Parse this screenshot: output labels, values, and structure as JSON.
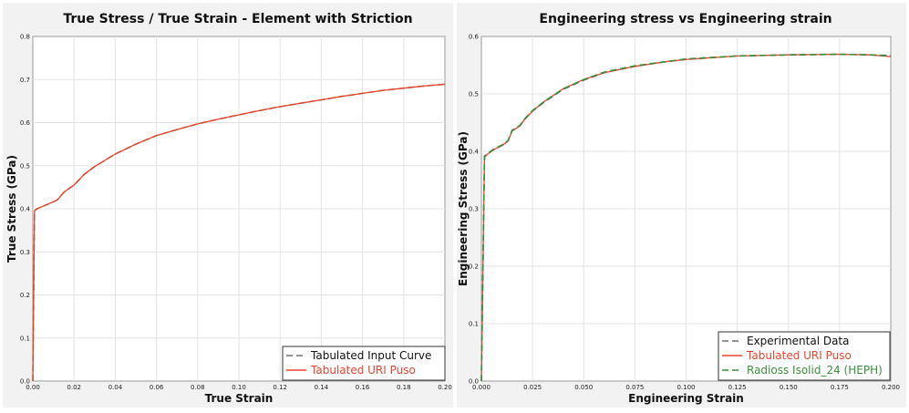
{
  "chart_data": [
    {
      "type": "line",
      "title": "True Stress / True Strain - Element with Striction",
      "xlabel": "True Strain",
      "ylabel": "True Stress (GPa)",
      "xlim": [
        0,
        0.2
      ],
      "ylim": [
        0,
        0.8
      ],
      "xticks": [
        "0.00",
        "0.02",
        "0.04",
        "0.06",
        "0.08",
        "0.10",
        "0.12",
        "0.14",
        "0.16",
        "0.18",
        "0.20"
      ],
      "yticks": [
        "0.0",
        "0.1",
        "0.2",
        "0.3",
        "0.4",
        "0.5",
        "0.6",
        "0.7",
        "0.8"
      ],
      "legend_position": "bottom-right",
      "series": [
        {
          "name": "Tabulated Input Curve",
          "color": "#707070",
          "style": "dashed",
          "x": [
            0,
            0.0008,
            0.002,
            0.005,
            0.008,
            0.01,
            0.012,
            0.015,
            0.017,
            0.02,
            0.025,
            0.03,
            0.04,
            0.05,
            0.06,
            0.07,
            0.08,
            0.09,
            0.1,
            0.11,
            0.12,
            0.13,
            0.14,
            0.15,
            0.16,
            0.17,
            0.18,
            0.19,
            0.2
          ],
          "y": [
            0,
            0.395,
            0.4,
            0.406,
            0.412,
            0.416,
            0.421,
            0.438,
            0.445,
            0.455,
            0.48,
            0.498,
            0.527,
            0.55,
            0.57,
            0.584,
            0.597,
            0.608,
            0.618,
            0.628,
            0.637,
            0.645,
            0.653,
            0.661,
            0.668,
            0.675,
            0.68,
            0.685,
            0.689
          ]
        },
        {
          "name": "Tabulated URI Puso",
          "color": "#e8452c",
          "style": "solid",
          "x": [
            0,
            0.0008,
            0.002,
            0.005,
            0.008,
            0.01,
            0.012,
            0.015,
            0.017,
            0.02,
            0.025,
            0.03,
            0.04,
            0.05,
            0.06,
            0.07,
            0.08,
            0.09,
            0.1,
            0.11,
            0.12,
            0.13,
            0.14,
            0.15,
            0.16,
            0.17,
            0.18,
            0.19,
            0.2
          ],
          "y": [
            0,
            0.395,
            0.4,
            0.406,
            0.412,
            0.416,
            0.421,
            0.438,
            0.445,
            0.455,
            0.48,
            0.498,
            0.527,
            0.55,
            0.57,
            0.584,
            0.597,
            0.608,
            0.618,
            0.628,
            0.637,
            0.645,
            0.653,
            0.661,
            0.668,
            0.675,
            0.68,
            0.685,
            0.689
          ]
        }
      ]
    },
    {
      "type": "line",
      "title": "Engineering stress vs Engineering strain",
      "xlabel": "Engineering Strain",
      "ylabel": "Engineering Stress (GPa)",
      "xlim": [
        0,
        0.2
      ],
      "ylim": [
        0,
        0.6
      ],
      "xticks": [
        "0.000",
        "0.025",
        "0.050",
        "0.075",
        "0.100",
        "0.125",
        "0.150",
        "0.175",
        "0.200"
      ],
      "yticks": [
        "0.0",
        "0.1",
        "0.2",
        "0.3",
        "0.4",
        "0.5",
        "0.6"
      ],
      "legend_position": "bottom-right",
      "series": [
        {
          "name": "Experimental Data",
          "color": "#707070",
          "style": "dashed",
          "x": [
            0,
            0.0015,
            0.003,
            0.006,
            0.01,
            0.013,
            0.015,
            0.017,
            0.019,
            0.021,
            0.025,
            0.03,
            0.04,
            0.05,
            0.06,
            0.075,
            0.09,
            0.1,
            0.125,
            0.15,
            0.175,
            0.19,
            0.2
          ],
          "y": [
            0,
            0.39,
            0.395,
            0.403,
            0.41,
            0.418,
            0.437,
            0.44,
            0.445,
            0.455,
            0.47,
            0.484,
            0.508,
            0.524,
            0.537,
            0.548,
            0.556,
            0.56,
            0.566,
            0.568,
            0.569,
            0.568,
            0.567
          ]
        },
        {
          "name": "Tabulated URI Puso",
          "color": "#e8452c",
          "style": "solid",
          "x": [
            0,
            0.0015,
            0.003,
            0.006,
            0.01,
            0.013,
            0.015,
            0.017,
            0.019,
            0.021,
            0.025,
            0.03,
            0.04,
            0.05,
            0.06,
            0.075,
            0.09,
            0.1,
            0.125,
            0.15,
            0.175,
            0.19,
            0.2
          ],
          "y": [
            0,
            0.39,
            0.395,
            0.403,
            0.41,
            0.418,
            0.435,
            0.44,
            0.445,
            0.455,
            0.47,
            0.485,
            0.509,
            0.525,
            0.537,
            0.548,
            0.556,
            0.56,
            0.566,
            0.568,
            0.569,
            0.568,
            0.565
          ]
        },
        {
          "name": "Radioss Isolid_24 (HEPH)",
          "color": "#3c8f3c",
          "style": "dashed",
          "x": [
            0,
            0.0015,
            0.003,
            0.006,
            0.01,
            0.013,
            0.015,
            0.017,
            0.019,
            0.021,
            0.025,
            0.03,
            0.04,
            0.05,
            0.06,
            0.075,
            0.09,
            0.1,
            0.125,
            0.15,
            0.175,
            0.19,
            0.2
          ],
          "y": [
            0,
            0.392,
            0.396,
            0.404,
            0.411,
            0.419,
            0.436,
            0.441,
            0.446,
            0.456,
            0.471,
            0.485,
            0.509,
            0.525,
            0.538,
            0.549,
            0.556,
            0.561,
            0.566,
            0.568,
            0.569,
            0.568,
            0.566
          ]
        }
      ]
    }
  ]
}
